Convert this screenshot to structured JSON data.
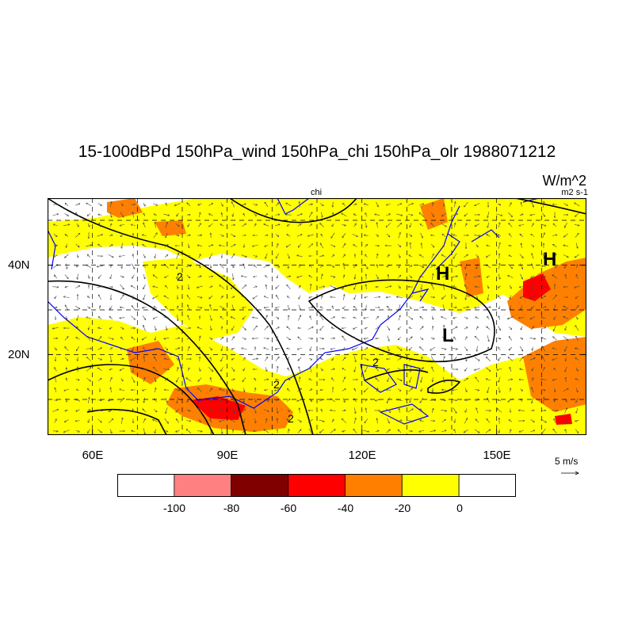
{
  "title": "15-100dBPd 150hPa_wind 150hPa_chi 150hPa_olr 1988071212",
  "units": "W/m^2",
  "contour_units": "m2 s-1",
  "contour_field_label": "chi",
  "map": {
    "lon_range": [
      50,
      170
    ],
    "lat_range": [
      2,
      55
    ],
    "x_ticks": [
      "60E",
      "90E",
      "120E",
      "150E"
    ],
    "y_ticks": [
      "40N",
      "20N"
    ],
    "grid": "dashed",
    "coastline_color": "#0000ff",
    "contour_color": "#000000",
    "contour_labels": [
      "2",
      "2",
      "2",
      "2"
    ],
    "centers": [
      {
        "label": "H",
        "lon": 137,
        "lat": 37
      },
      {
        "label": "H",
        "lon": 161,
        "lat": 41
      },
      {
        "label": "L",
        "lon": 140,
        "lat": 24
      }
    ]
  },
  "reference_vector": {
    "label": "5 m/s"
  },
  "colorbar": {
    "labels": [
      "-100",
      "-80",
      "-60",
      "-40",
      "-20",
      "0"
    ],
    "colors": [
      "#ffffff",
      "#ff8080",
      "#800000",
      "#ff0000",
      "#ff8000",
      "#ffff00",
      "#ffffff"
    ]
  }
}
